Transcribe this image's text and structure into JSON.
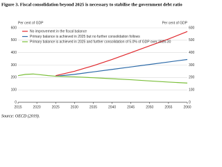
{
  "chart_data": {
    "type": "line",
    "title": "Figure 3. Fiscal consolidation beyond 2025 is necessary to stabilise the government debt ratio",
    "y_label": "Per cent of GDP",
    "y2_label": "Per cent of GDP",
    "source": "Source: OECD (2019).",
    "x": [
      2015,
      2017,
      2019,
      2021,
      2023,
      2025,
      2030,
      2035,
      2040,
      2045,
      2050,
      2055,
      2060
    ],
    "xlim": [
      2015,
      2060
    ],
    "xticks": [
      2015,
      2020,
      2025,
      2030,
      2035,
      2040,
      2045,
      2050,
      2055,
      2060
    ],
    "ylim": [
      0,
      600
    ],
    "yticks": [
      0,
      100,
      200,
      300,
      400,
      500,
      600
    ],
    "y2lim": [
      0,
      600
    ],
    "y2ticks": [
      0,
      100,
      200,
      300,
      400,
      500,
      600
    ],
    "grid": true,
    "legend": "upper left",
    "series": [
      {
        "name": "No improvement in the fiscal balance",
        "color": "#e0282d",
        "values": [
          null,
          null,
          null,
          null,
          null,
          215,
          250,
          295,
          345,
          400,
          455,
          510,
          570
        ]
      },
      {
        "name": "Primary balance is achieved in 2025 but no further consolidation follows",
        "color": "#2c6aa8",
        "values": [
          null,
          null,
          null,
          null,
          null,
          210,
          225,
          245,
          265,
          285,
          305,
          325,
          345
        ]
      },
      {
        "name": "Primary balance is achieved in 2025 and further consolidation of 5.0% of GDP over 2026-30",
        "color": "#7bbf3a",
        "values": [
          215,
          225,
          228,
          222,
          215,
          210,
          205,
          198,
          190,
          182,
          172,
          163,
          155
        ]
      }
    ]
  }
}
